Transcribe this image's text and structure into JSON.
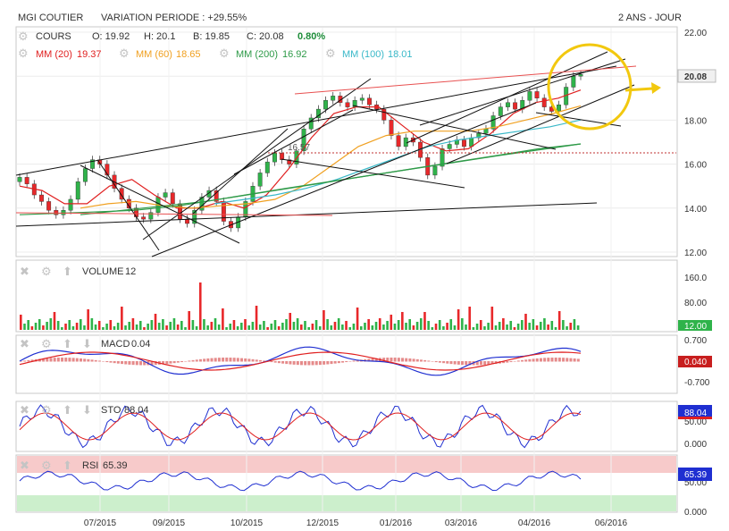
{
  "header": {
    "ticker": "MGI COUTIER",
    "variation_label": "VARIATION PERIODE : +29.55%",
    "period": "2 ANS - JOUR"
  },
  "ohlc": {
    "label": "COURS",
    "open": "O: 19.92",
    "high": "H: 20.1",
    "low": "B: 19.85",
    "close_label": "C: 20.08",
    "change": "0.80%"
  },
  "moving_averages": [
    {
      "label": "MM (20)",
      "value": "19.37",
      "color": "#e02020"
    },
    {
      "label": "MM (60)",
      "value": "18.65",
      "color": "#f0a020"
    },
    {
      "label": "MM (200)",
      "value": "16.92",
      "color": "#2e9a48"
    },
    {
      "label": "MM (100)",
      "value": "18.01",
      "color": "#39b8c8"
    }
  ],
  "annotations": {
    "price_mark": "16.57"
  },
  "panels": {
    "volume": {
      "label": "VOLUME",
      "value": "12",
      "last_tag": "12.00",
      "ticks": [
        "160.0",
        "80.00"
      ]
    },
    "macd": {
      "label": "MACD",
      "value": "0.04",
      "last_tag": "0.040",
      "ticks": [
        "0.700",
        "-0.700"
      ]
    },
    "sto": {
      "label": "STO",
      "value": "88.04",
      "last_tag": "88.04",
      "ticks": [
        "50.00",
        "0.000"
      ]
    },
    "rsi": {
      "label": "RSI",
      "value": "65.39",
      "last_tag": "65.39",
      "ticks": [
        "50.00",
        "0.000"
      ]
    }
  },
  "colors": {
    "up": "#2fb34a",
    "down": "#e8282a",
    "macd_line": "#1f2fd1",
    "signal_line": "#e02020",
    "highlight_circle": "#f2c80f",
    "rsi_overbought_zone": "#f7caca",
    "rsi_oversold_zone": "#ccefcc"
  },
  "chart_data": {
    "type": "candlestick",
    "y_ticks": [
      "22.00",
      "20.00",
      "18.00",
      "16.00",
      "14.00",
      "12.00"
    ],
    "ylim": [
      12,
      22
    ],
    "x_ticks": [
      "07/2015",
      "09/2015",
      "10/2015",
      "12/2015",
      "01/2016",
      "03/2016",
      "04/2016",
      "06/2016"
    ],
    "last_price_tag": "20.08",
    "series": [
      {
        "name": "COURS",
        "close": [
          15.4,
          15.1,
          14.6,
          14.3,
          13.9,
          13.7,
          13.9,
          14.4,
          15.2,
          15.8,
          16.2,
          16.0,
          15.5,
          14.9,
          14.4,
          14.0,
          13.6,
          13.5,
          13.8,
          14.5,
          14.7,
          14.2,
          13.5,
          13.3,
          13.9,
          14.5,
          14.8,
          14.3,
          13.4,
          13.1,
          13.6,
          14.3,
          15.0,
          15.6,
          16.1,
          16.5,
          16.2,
          16.0,
          16.6,
          17.6,
          18.1,
          18.5,
          18.9,
          19.1,
          18.8,
          18.6,
          18.9,
          19.0,
          18.7,
          18.5,
          18.0,
          17.3,
          16.8,
          17.2,
          17.0,
          16.3,
          15.5,
          15.9,
          16.7,
          16.9,
          17.1,
          16.8,
          17.2,
          17.4,
          17.6,
          18.2,
          18.6,
          18.8,
          18.5,
          18.9,
          19.3,
          19.0,
          18.6,
          18.4,
          18.7,
          19.5,
          20.0,
          20.08
        ]
      },
      {
        "name": "MM (20)",
        "values": [
          15.0,
          14.8,
          14.2,
          14.2,
          15.0,
          15.3,
          14.6,
          14.0,
          14.0,
          14.3,
          14.0,
          14.6,
          15.8,
          17.2,
          18.3,
          18.6,
          18.6,
          17.8,
          17.0,
          16.6,
          16.7,
          17.4,
          18.3,
          18.8,
          19.0,
          19.37
        ]
      },
      {
        "name": "MM (60)",
        "values": [
          14.0,
          14.2,
          14.3,
          14.1,
          14.0,
          14.1,
          14.2,
          14.4,
          15.0,
          15.9,
          16.8,
          17.3,
          17.5,
          17.5,
          17.5,
          17.7,
          18.0,
          18.3,
          18.65
        ]
      },
      {
        "name": "MM (100)",
        "values": [
          14.2,
          14.4,
          14.6,
          14.9,
          15.3,
          15.8,
          16.3,
          16.8,
          17.1,
          17.3,
          17.5,
          17.7,
          18.01
        ]
      },
      {
        "name": "MM (200)",
        "values": [
          13.7,
          13.9,
          14.1,
          14.3,
          14.6,
          14.9,
          15.2,
          15.5,
          15.8,
          16.1,
          16.4,
          16.7,
          16.92
        ]
      }
    ]
  }
}
